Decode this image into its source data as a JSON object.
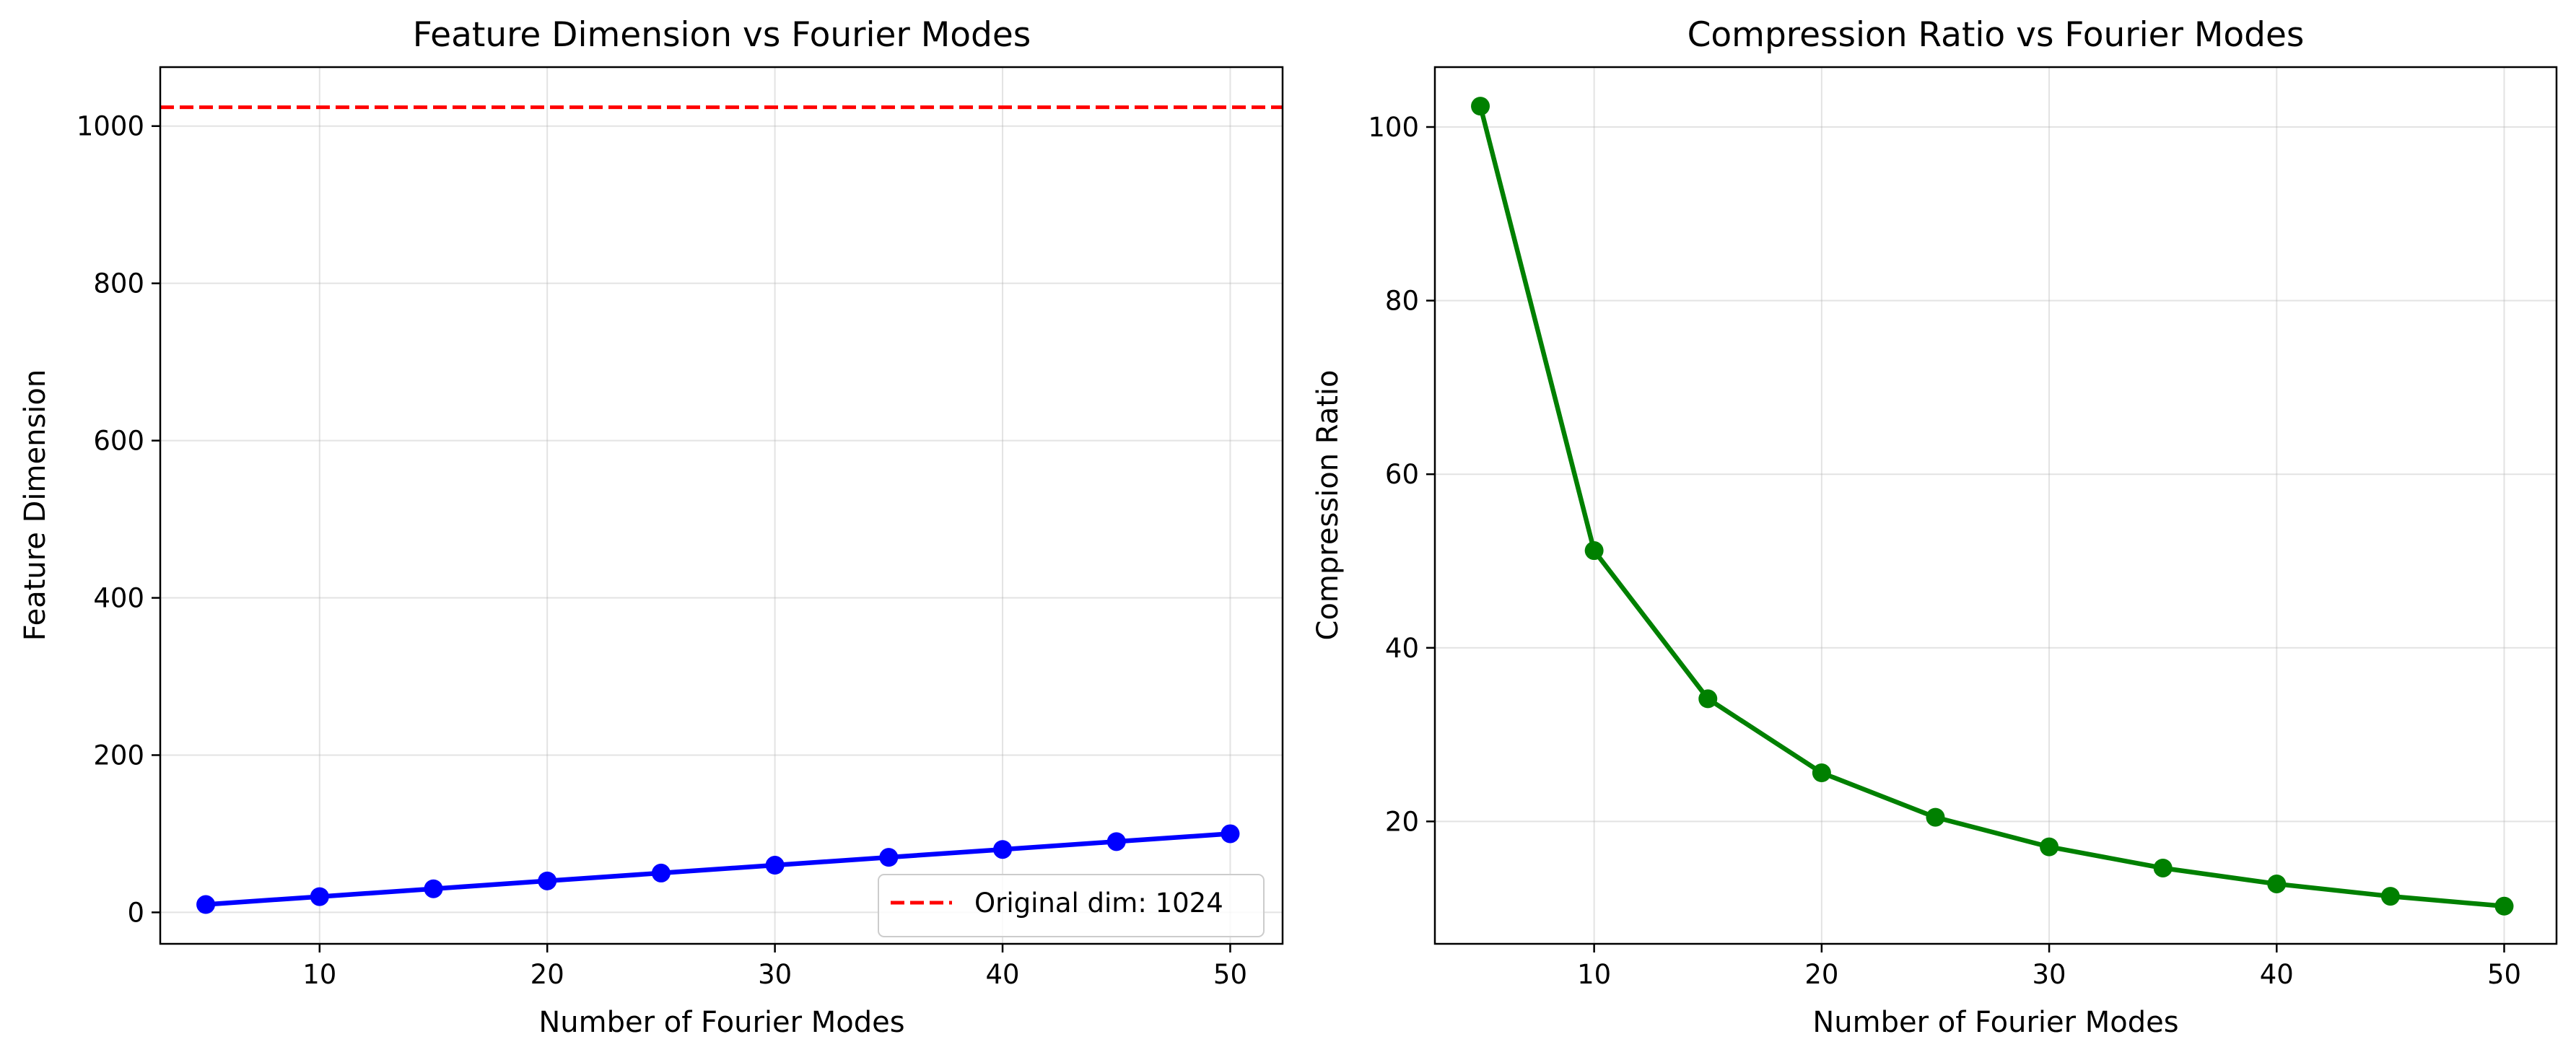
{
  "chart_data": [
    {
      "type": "line",
      "title": "Feature Dimension vs Fourier Modes",
      "xlabel": "Number of Fourier Modes",
      "ylabel": "Feature Dimension",
      "xlim": [
        3,
        52.3
      ],
      "ylim": [
        -40,
        1075
      ],
      "xticks": [
        10,
        20,
        30,
        40,
        50
      ],
      "yticks": [
        0,
        200,
        400,
        600,
        800,
        1000
      ],
      "grid": true,
      "legend_location": "lower-right",
      "series": [
        {
          "name": "Feature Dimension",
          "color": "#0000ff",
          "marker": "circle",
          "x": [
            5,
            10,
            15,
            20,
            25,
            30,
            35,
            40,
            45,
            50
          ],
          "y": [
            10,
            20,
            30,
            40,
            50,
            60,
            70,
            80,
            90,
            100
          ]
        }
      ],
      "reference_lines": [
        {
          "orientation": "horizontal",
          "y": 1024,
          "style": "dashed",
          "color": "#ff0000",
          "label": "Original dim: 1024"
        }
      ]
    },
    {
      "type": "line",
      "title": "Compression Ratio vs Fourier Modes",
      "xlabel": "Number of Fourier Modes",
      "ylabel": "Compression Ratio",
      "xlim": [
        3,
        52.3
      ],
      "ylim": [
        5.9,
        106.9
      ],
      "xticks": [
        10,
        20,
        30,
        40,
        50
      ],
      "yticks": [
        20,
        40,
        60,
        80,
        100
      ],
      "grid": true,
      "series": [
        {
          "name": "Compression Ratio",
          "color": "#008000",
          "marker": "circle",
          "x": [
            5,
            10,
            15,
            20,
            25,
            30,
            35,
            40,
            45,
            50
          ],
          "y": [
            102.4,
            51.2,
            34.13,
            25.6,
            20.48,
            17.07,
            14.63,
            12.8,
            11.38,
            10.24
          ]
        }
      ]
    }
  ]
}
